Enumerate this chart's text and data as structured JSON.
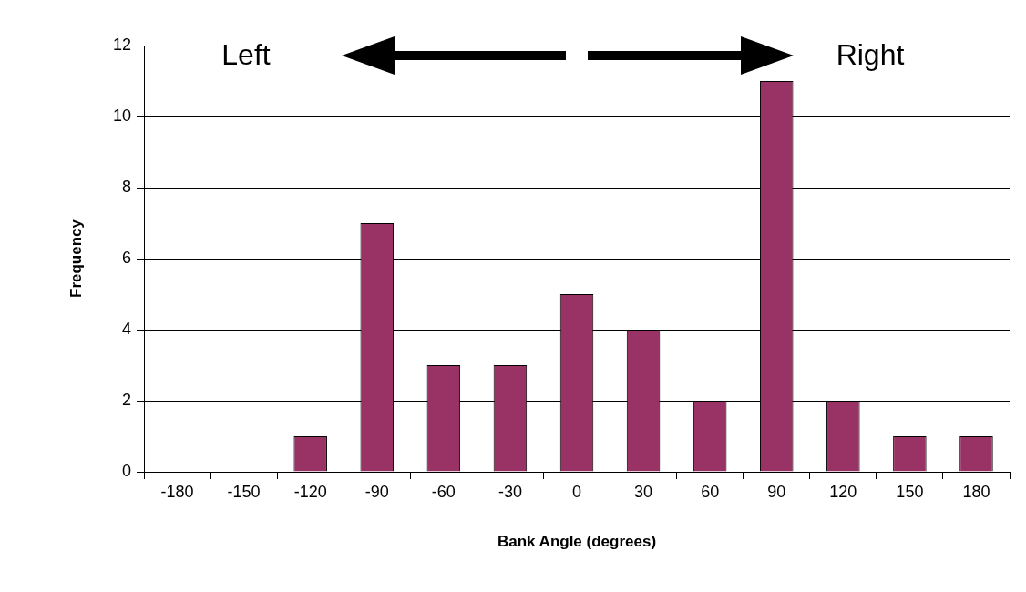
{
  "chart_data": {
    "type": "bar",
    "xlabel": "Bank Angle (degrees)",
    "ylabel": "Frequency",
    "categories": [
      "-180",
      "-150",
      "-120",
      "-90",
      "-60",
      "-30",
      "0",
      "30",
      "60",
      "90",
      "120",
      "150",
      "180"
    ],
    "values": [
      0,
      0,
      1,
      7,
      3,
      3,
      5,
      4,
      2,
      11,
      2,
      1,
      1
    ],
    "color": "#993366",
    "ylim": [
      0,
      12
    ],
    "yticks": [
      0,
      2,
      4,
      6,
      8,
      10,
      12
    ],
    "grid": "y",
    "legend": false,
    "annotations": [
      "Left",
      "Right"
    ]
  }
}
